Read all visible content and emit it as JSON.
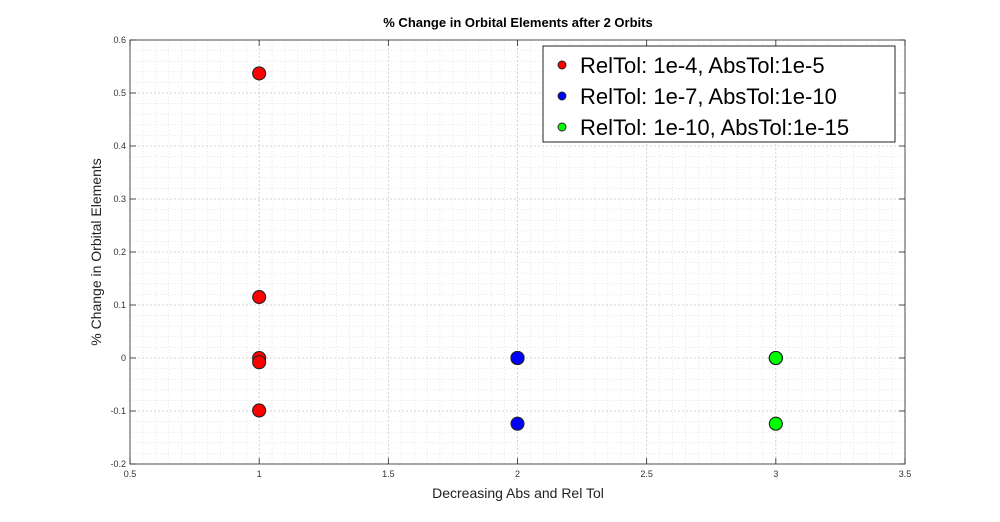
{
  "chart_data": {
    "type": "scatter",
    "title": "% Change in Orbital Elements after 2 Orbits",
    "xlabel": "Decreasing Abs and Rel Tol",
    "ylabel": "% Change in Orbital Elements",
    "xlim": [
      0.5,
      3.5
    ],
    "ylim": [
      -0.2,
      0.6
    ],
    "xticks": [
      0.5,
      1,
      1.5,
      2,
      2.5,
      3,
      3.5
    ],
    "xtick_labels": [
      "0.5",
      "1",
      "1.5",
      "2",
      "2.5",
      "3",
      "3.5"
    ],
    "yticks": [
      -0.2,
      -0.1,
      0,
      0.1,
      0.2,
      0.3,
      0.4,
      0.5,
      0.6
    ],
    "ytick_labels": [
      "-0.2",
      "-0.1",
      "0",
      "0.1",
      "0.2",
      "0.3",
      "0.4",
      "0.5",
      "0.6"
    ],
    "grid": true,
    "minor_grid": true,
    "legend_position": "top-right",
    "series": [
      {
        "name": "RelTol: 1e-4, AbsTol:1e-5",
        "color": "#ff0000",
        "points": [
          {
            "x": 1,
            "y": 0.537
          },
          {
            "x": 1,
            "y": 0.115
          },
          {
            "x": 1,
            "y": 0.0
          },
          {
            "x": 1,
            "y": -0.008
          },
          {
            "x": 1,
            "y": -0.099
          }
        ]
      },
      {
        "name": "RelTol: 1e-7, AbsTol:1e-10",
        "color": "#0000ff",
        "points": [
          {
            "x": 2,
            "y": 0.0
          },
          {
            "x": 2,
            "y": 0.0
          },
          {
            "x": 2,
            "y": 0.0
          },
          {
            "x": 2,
            "y": 0.0
          },
          {
            "x": 2,
            "y": -0.124
          }
        ]
      },
      {
        "name": "RelTol: 1e-10, AbsTol:1e-15",
        "color": "#00ff00",
        "points": [
          {
            "x": 3,
            "y": 0.0
          },
          {
            "x": 3,
            "y": 0.0
          },
          {
            "x": 3,
            "y": 0.0
          },
          {
            "x": 3,
            "y": 0.0
          },
          {
            "x": 3,
            "y": -0.124
          }
        ]
      }
    ]
  }
}
